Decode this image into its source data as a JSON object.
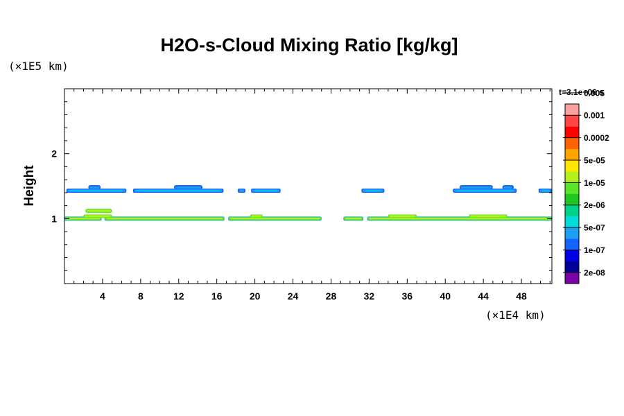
{
  "chart_data": {
    "type": "heatmap",
    "title": "H2O-s-Cloud Mixing Ratio [kg/kg]",
    "xlabel": "",
    "ylabel": "Height",
    "x_unit": "(×1E4 km)",
    "y_unit": "(×1E5 km)",
    "time_label": "t=3.1e+06 s",
    "xlim": [
      0,
      51.2
    ],
    "ylim": [
      0,
      3.0
    ],
    "x_ticks": [
      4,
      8,
      12,
      16,
      20,
      24,
      28,
      32,
      36,
      40,
      44,
      48
    ],
    "y_ticks": [
      1,
      2
    ],
    "grid": false,
    "colorbar": {
      "labels": [
        "0.005",
        "0.001",
        "0.0002",
        "5e-05",
        "1e-05",
        "2e-06",
        "5e-07",
        "1e-07",
        "2e-08"
      ],
      "colors": [
        "#7a00a8",
        "#000096",
        "#0000e6",
        "#1464ff",
        "#1ea0f0",
        "#00dcdc",
        "#00d28c",
        "#1ec81e",
        "#5ae628",
        "#b4f01e",
        "#ffe600",
        "#ffa500",
        "#ff6400",
        "#ff0000",
        "#ff4646",
        "#ffa0a0"
      ]
    },
    "series": [
      {
        "level": "upper",
        "height": 1.43,
        "segments": [
          [
            0.2,
            6.5
          ],
          [
            7.2,
            16.7
          ],
          [
            18.2,
            19.0
          ],
          [
            19.6,
            22.7
          ],
          [
            31.2,
            33.6
          ],
          [
            40.8,
            47.5
          ],
          [
            49.8,
            51.2
          ]
        ],
        "bumps": [
          [
            2.5,
            3.8
          ],
          [
            11.5,
            14.5
          ],
          [
            41.5,
            45.0
          ],
          [
            46.0,
            47.2
          ]
        ]
      },
      {
        "level": "lower",
        "height": 1.0,
        "segments": [
          [
            0.0,
            3.9
          ],
          [
            4.2,
            16.8
          ],
          [
            17.2,
            27.0
          ],
          [
            29.3,
            31.4
          ],
          [
            31.8,
            51.2
          ]
        ],
        "bumps": [
          [
            2.0,
            5.0
          ],
          [
            19.5,
            20.8
          ],
          [
            34.0,
            37.0
          ],
          [
            42.5,
            46.5
          ]
        ]
      }
    ]
  }
}
